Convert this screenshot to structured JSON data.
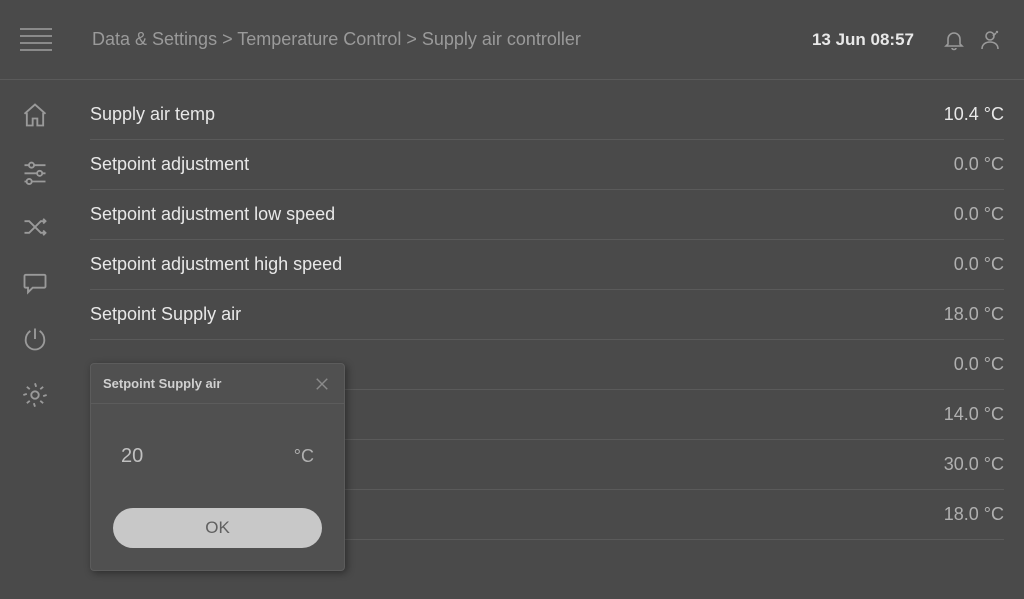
{
  "colors": {
    "background": "#4a4a4a",
    "text_primary": "#e8e8e8",
    "text_muted": "#9a9a9a",
    "value_muted": "#b0b0b0",
    "divider": "#5a5a5a",
    "popup_bg": "#505050",
    "ok_button_bg": "#c8c8c8",
    "ok_button_text": "#606060",
    "icon_stroke": "#9a9a9a"
  },
  "header": {
    "breadcrumb": "Data & Settings > Temperature Control > Supply air controller",
    "datetime": "13 Jun 08:57"
  },
  "rows": [
    {
      "label": "Supply air temp",
      "value": "10.4 °C",
      "primary": true
    },
    {
      "label": "Setpoint adjustment",
      "value": "0.0 °C"
    },
    {
      "label": "Setpoint adjustment low speed",
      "value": "0.0 °C"
    },
    {
      "label": "Setpoint adjustment high speed",
      "value": "0.0 °C"
    },
    {
      "label": "Setpoint Supply air",
      "value": "18.0 °C"
    },
    {
      "label": "",
      "value": "0.0 °C"
    },
    {
      "label": "",
      "value": "14.0 °C"
    },
    {
      "label": "",
      "value": "30.0 °C"
    },
    {
      "label": "",
      "value": "18.0 °C"
    }
  ],
  "popup": {
    "title": "Setpoint Supply air",
    "value": "20",
    "unit": "°C",
    "ok_label": "OK"
  }
}
